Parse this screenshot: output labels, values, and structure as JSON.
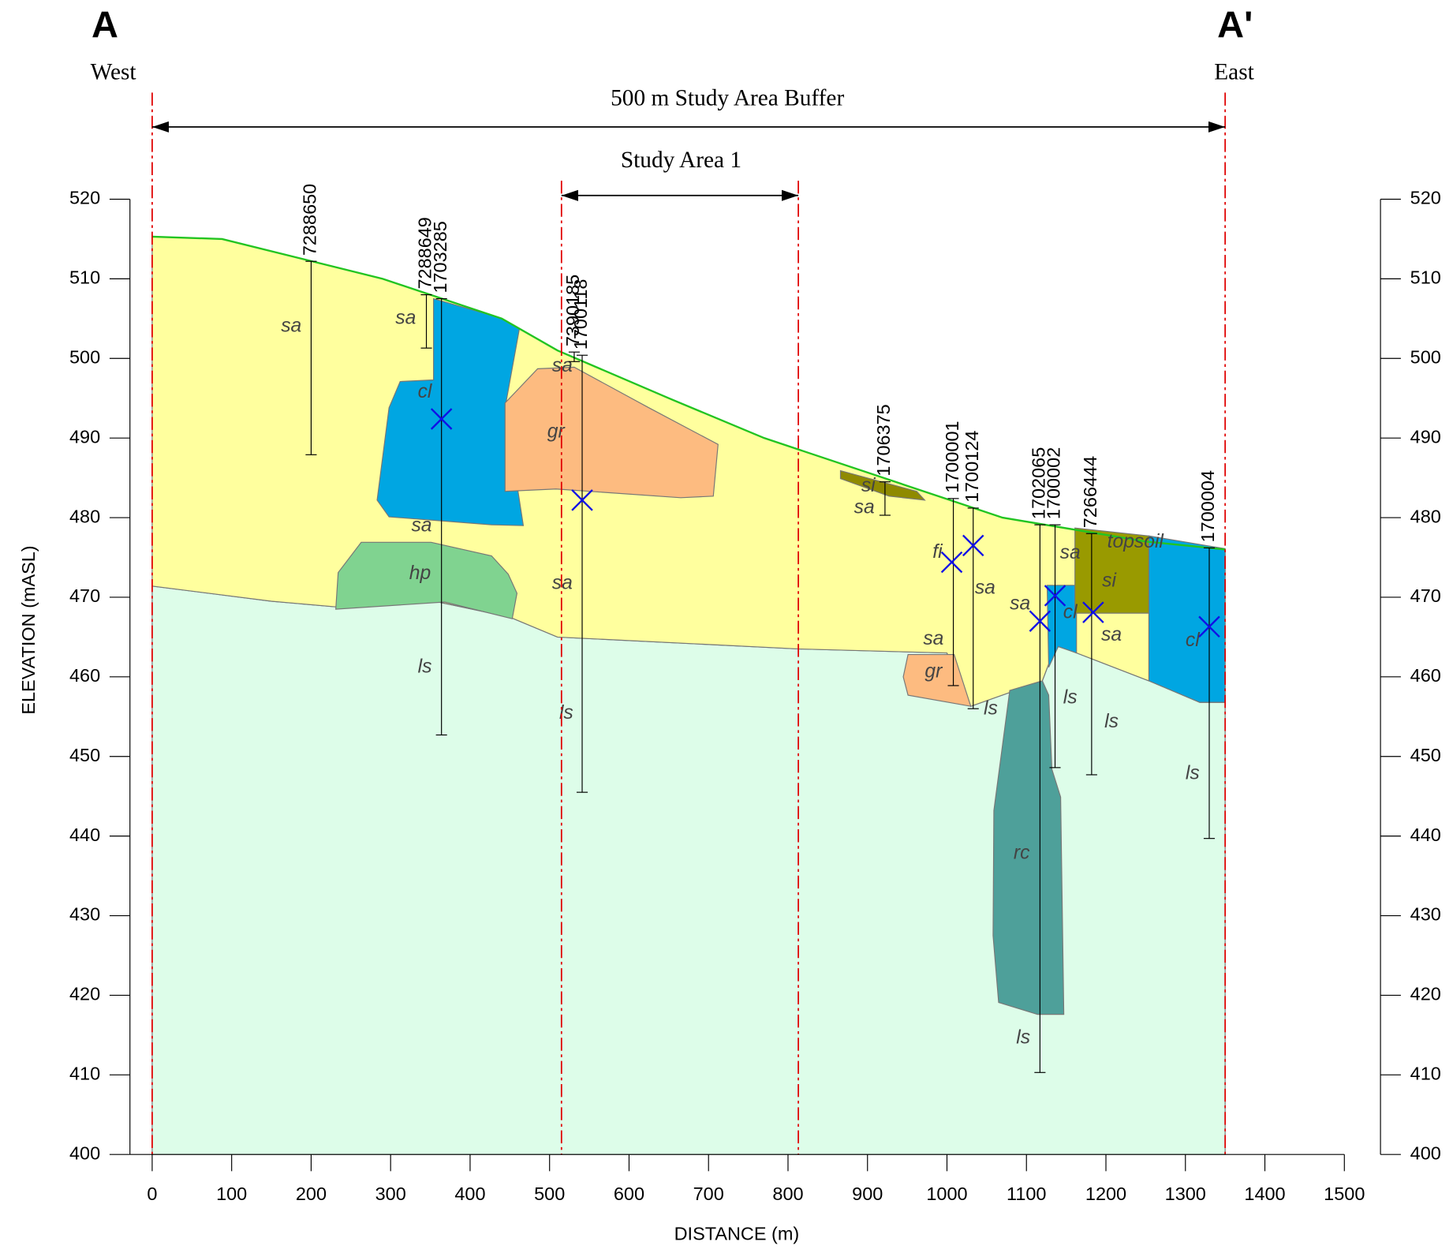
{
  "chart_data": {
    "type": "cross-section",
    "title": "500 m Study Area Buffer",
    "subtitle": "Study Area 1",
    "left_marker": "A",
    "right_marker": "A'",
    "left_direction": "West",
    "right_direction": "East",
    "x_label": "DISTANCE (m)",
    "y_label": "ELEVATION (mASL)",
    "xlim": [
      0,
      1500
    ],
    "ylim": [
      400,
      520
    ],
    "xticks": [
      0,
      100,
      200,
      300,
      400,
      500,
      600,
      700,
      800,
      900,
      1000,
      1100,
      1200,
      1300,
      1400,
      1500
    ],
    "yticks": [
      400,
      410,
      420,
      430,
      440,
      450,
      460,
      470,
      480,
      490,
      500,
      510,
      520
    ],
    "buffer": [
      0,
      1350
    ],
    "study_area": [
      515,
      813
    ],
    "surface": {
      "color": "#22c422",
      "x": [
        0,
        88,
        290,
        440,
        510,
        650,
        770,
        950,
        1070,
        1250,
        1350
      ],
      "values": [
        515.3,
        515,
        510,
        505,
        501,
        495,
        490,
        484,
        480,
        477,
        476
      ]
    },
    "units": [
      {
        "color": "#ddfde9",
        "x": [
          0,
          150,
          230,
          360,
          450,
          510,
          815,
          1000,
          1030,
          1120,
          1137,
          1254,
          1318,
          1350,
          1350,
          0
        ],
        "values": [
          471.4,
          469.5,
          468.8,
          469.4,
          467.5,
          465,
          463.5,
          463,
          456.3,
          459.5,
          464,
          459.5,
          456.8,
          456.8,
          400,
          400
        ]
      },
      {
        "color": "#ffff9e",
        "x": [
          0,
          88,
          290,
          440,
          510,
          650,
          770,
          950,
          1070,
          1250,
          1350,
          1350,
          1318,
          1254,
          1137,
          1120,
          1030,
          1000,
          815,
          510,
          450,
          360,
          230,
          150,
          0
        ],
        "values": [
          515.3,
          515,
          510,
          505,
          501,
          495,
          490,
          484,
          480,
          477,
          476,
          456.8,
          456.8,
          459.5,
          464,
          459.5,
          456.3,
          463,
          463.5,
          465,
          467.5,
          469.4,
          468.8,
          469.5,
          471.4
        ]
      },
      {
        "color": "#00a6e2",
        "x": [
          354,
          438,
          462,
          444,
          467,
          427,
          298,
          283,
          298,
          312,
          354
        ],
        "values": [
          507.5,
          505.1,
          503.7,
          493.8,
          479,
          479.1,
          480.1,
          482.2,
          493.8,
          497.1,
          497.3
        ]
      },
      {
        "color": "#fdbb80",
        "x": [
          444,
          485,
          531,
          625,
          712,
          706,
          665,
          508,
          444
        ],
        "values": [
          494.4,
          498.7,
          498.9,
          493.8,
          489.2,
          482.7,
          482.5,
          483.6,
          483.3
        ]
      },
      {
        "color": "#80d390",
        "x": [
          263,
          351,
          427,
          448,
          459,
          453,
          368,
          231,
          234
        ],
        "values": [
          476.9,
          476.9,
          475.2,
          472.9,
          470.5,
          467.3,
          469.4,
          468.5,
          473.1
        ]
      },
      {
        "color": "#8f8a00",
        "x": [
          866,
          962,
          972,
          927,
          866
        ],
        "values": [
          485.9,
          483.3,
          482.2,
          482.7,
          484.9
        ]
      },
      {
        "color": "#fdbb80",
        "x": [
          951,
          1009,
          1030,
          951,
          945
        ],
        "values": [
          462.8,
          462.8,
          456.3,
          457.7,
          460
        ]
      },
      {
        "color": "#4ea09a",
        "x": [
          1079,
          1120,
          1128,
          1132,
          1143,
          1147,
          1114,
          1065,
          1058,
          1059
        ],
        "values": [
          458.3,
          459.5,
          457.7,
          448.4,
          444.9,
          417.6,
          417.6,
          419.1,
          427.5,
          443.2
        ]
      },
      {
        "color": "#00a6e2",
        "x": [
          1126,
          1163,
          1163,
          1140,
          1128
        ],
        "values": [
          471.5,
          471.5,
          463,
          463.8,
          461.2
        ]
      },
      {
        "color": "#999a00",
        "x": [
          1161,
          1254,
          1254,
          1161
        ],
        "values": [
          478.7,
          477.7,
          468,
          468
        ]
      },
      {
        "color": "#00a6e2",
        "x": [
          1254,
          1350,
          1350,
          1318,
          1254
        ],
        "values": [
          477.7,
          476.1,
          456.8,
          456.8,
          459.5
        ]
      }
    ],
    "boreholes": [
      {
        "name": "7288650",
        "x": 200,
        "top": 512.2,
        "bottom": 487.9
      },
      {
        "name": "7288649",
        "x": 345,
        "top": 508,
        "bottom": 501.3
      },
      {
        "name": "1703285",
        "x": 364,
        "top": 507.5,
        "bottom": 452.7
      },
      {
        "name": "7390185",
        "x": 531,
        "top": 500.8,
        "bottom": 499.6
      },
      {
        "name": "1700118",
        "x": 541,
        "top": 500.4,
        "bottom": 445.5
      },
      {
        "name": "1706375",
        "x": 922,
        "top": 484.5,
        "bottom": 480.3
      },
      {
        "name": "1700001",
        "x": 1008,
        "top": 482.4,
        "bottom": 458.9
      },
      {
        "name": "1700124",
        "x": 1033,
        "top": 481.2,
        "bottom": 456
      },
      {
        "name": "1702065",
        "x": 1117,
        "top": 479.1,
        "bottom": 410.3
      },
      {
        "name": "1700002",
        "x": 1136,
        "top": 479.1,
        "bottom": 448.6
      },
      {
        "name": "7266444",
        "x": 1182,
        "top": 478,
        "bottom": 447.7
      },
      {
        "name": "1700004",
        "x": 1330,
        "top": 476.2,
        "bottom": 439.7
      }
    ],
    "water_levels": {
      "color": "#1010e6",
      "x": [
        364,
        541,
        1006,
        1033,
        1117,
        1136,
        1184,
        1330
      ],
      "values": [
        492.4,
        482.2,
        474.4,
        476.5,
        467,
        470.2,
        468.1,
        466.3
      ]
    },
    "labels": [
      {
        "text": "sa",
        "x": 175,
        "y": 504
      },
      {
        "text": "sa",
        "x": 319,
        "y": 505
      },
      {
        "text": "cl",
        "x": 343,
        "y": 495.7
      },
      {
        "text": "sa",
        "x": 516,
        "y": 499
      },
      {
        "text": "gr",
        "x": 508,
        "y": 490.7
      },
      {
        "text": "sa",
        "x": 339,
        "y": 478.9
      },
      {
        "text": "hp",
        "x": 337,
        "y": 472.9
      },
      {
        "text": "ls",
        "x": 343,
        "y": 461.2
      },
      {
        "text": "sa",
        "x": 516,
        "y": 471.7
      },
      {
        "text": "ls",
        "x": 521,
        "y": 455.4
      },
      {
        "text": "si",
        "x": 901,
        "y": 483.9
      },
      {
        "text": "sa",
        "x": 896,
        "y": 481.2
      },
      {
        "text": "fi",
        "x": 988,
        "y": 475.6
      },
      {
        "text": "sa",
        "x": 1048,
        "y": 471.1
      },
      {
        "text": "sa",
        "x": 983,
        "y": 464.7
      },
      {
        "text": "gr",
        "x": 983,
        "y": 460.6
      },
      {
        "text": "ls",
        "x": 1055,
        "y": 455.9
      },
      {
        "text": "sa",
        "x": 1092,
        "y": 469.1
      },
      {
        "text": "cl",
        "x": 1155,
        "y": 468
      },
      {
        "text": "sa",
        "x": 1155,
        "y": 475.5
      },
      {
        "text": "topsoil",
        "x": 1237,
        "y": 476.9
      },
      {
        "text": "si",
        "x": 1204,
        "y": 472
      },
      {
        "text": "sa",
        "x": 1207,
        "y": 465.2
      },
      {
        "text": "ls",
        "x": 1155,
        "y": 457.3
      },
      {
        "text": "ls",
        "x": 1207,
        "y": 454.3
      },
      {
        "text": "cl",
        "x": 1309,
        "y": 464.5
      },
      {
        "text": "ls",
        "x": 1309,
        "y": 447.8
      },
      {
        "text": "rc",
        "x": 1094,
        "y": 437.8
      },
      {
        "text": "ls",
        "x": 1096,
        "y": 414.6
      }
    ]
  }
}
